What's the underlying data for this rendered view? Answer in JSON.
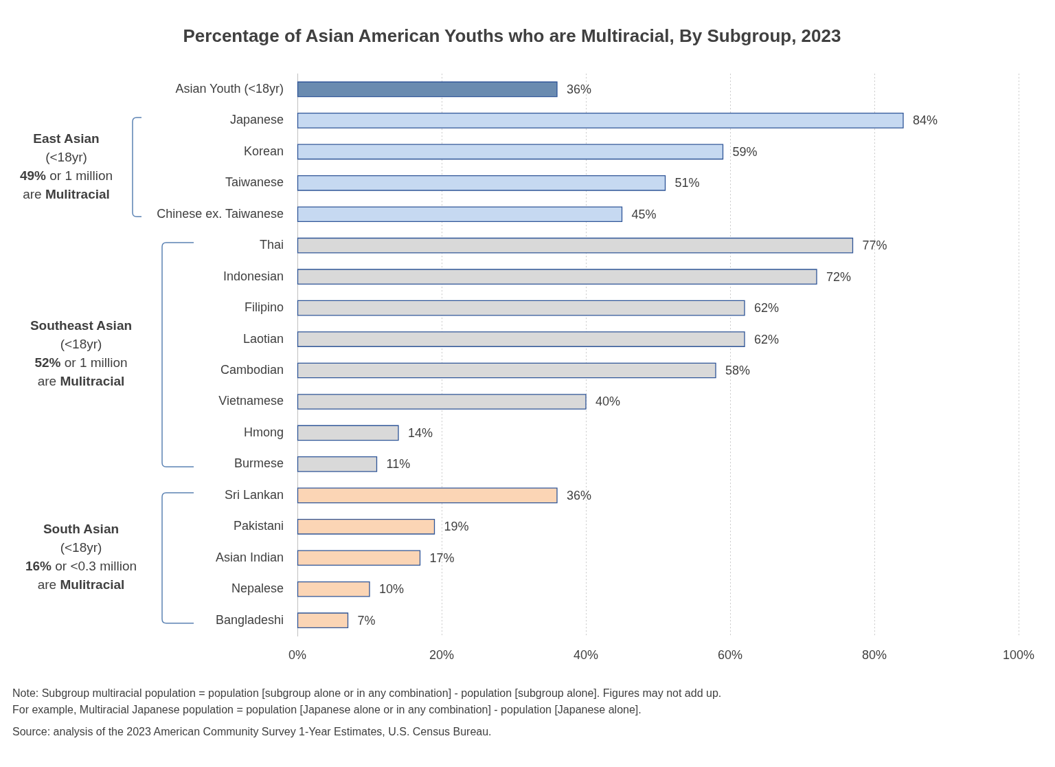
{
  "chart_data": {
    "type": "bar",
    "orientation": "horizontal",
    "title": "Percentage of Asian American Youths who are Multiracial, By Subgroup, 2023",
    "categories": [
      "Asian Youth (<18yr)",
      "Japanese",
      "Korean",
      "Taiwanese",
      "Chinese ex. Taiwanese",
      "Thai",
      "Indonesian",
      "Filipino",
      "Laotian",
      "Cambodian",
      "Vietnamese",
      "Hmong",
      "Burmese",
      "Sri Lankan",
      "Pakistani",
      "Asian Indian",
      "Nepalese",
      "Bangladeshi"
    ],
    "values": [
      36,
      84,
      59,
      51,
      45,
      77,
      72,
      62,
      62,
      58,
      40,
      14,
      11,
      36,
      19,
      17,
      10,
      7
    ],
    "value_labels": [
      "36%",
      "84%",
      "59%",
      "51%",
      "45%",
      "77%",
      "72%",
      "62%",
      "62%",
      "58%",
      "40%",
      "14%",
      "11%",
      "36%",
      "19%",
      "17%",
      "10%",
      "7%"
    ],
    "colors": [
      "#6a8bb0",
      "#c6d9f1",
      "#c6d9f1",
      "#c6d9f1",
      "#c6d9f1",
      "#d9d9d9",
      "#d9d9d9",
      "#d9d9d9",
      "#d9d9d9",
      "#d9d9d9",
      "#d9d9d9",
      "#d9d9d9",
      "#d9d9d9",
      "#fbd5b5",
      "#fbd5b5",
      "#fbd5b5",
      "#fbd5b5",
      "#fbd5b5"
    ],
    "xlim": [
      0,
      100
    ],
    "xticks": [
      {
        "value": 0,
        "label": "0%"
      },
      {
        "value": 20,
        "label": "20%"
      },
      {
        "value": 40,
        "label": "40%"
      },
      {
        "value": 60,
        "label": "60%"
      },
      {
        "value": 80,
        "label": "80%"
      },
      {
        "value": 100,
        "label": "100%"
      }
    ],
    "grid": "x",
    "legend": false,
    "annotations": [
      "East Asian\n(<18yr)\n49% or 1 million\nare Mulitracial",
      "Southeast Asian\n(<18yr)\n52% or 1 million\nare Mulitracial",
      "South Asian\n(<18yr)\n16% or <0.3 million\nare Mulitracial",
      "Note: Subgroup multiracial population = population [subgroup alone or in any combination] - population [subgroup alone]. Figures may not add up.",
      "For example, Multiracial Japanese population = population [Japanese alone or in any combination] - population [Japanese alone].",
      "Source: analysis of the 2023 American Community Survey 1-Year Estimates, U.S. Census Bureau."
    ]
  }
}
